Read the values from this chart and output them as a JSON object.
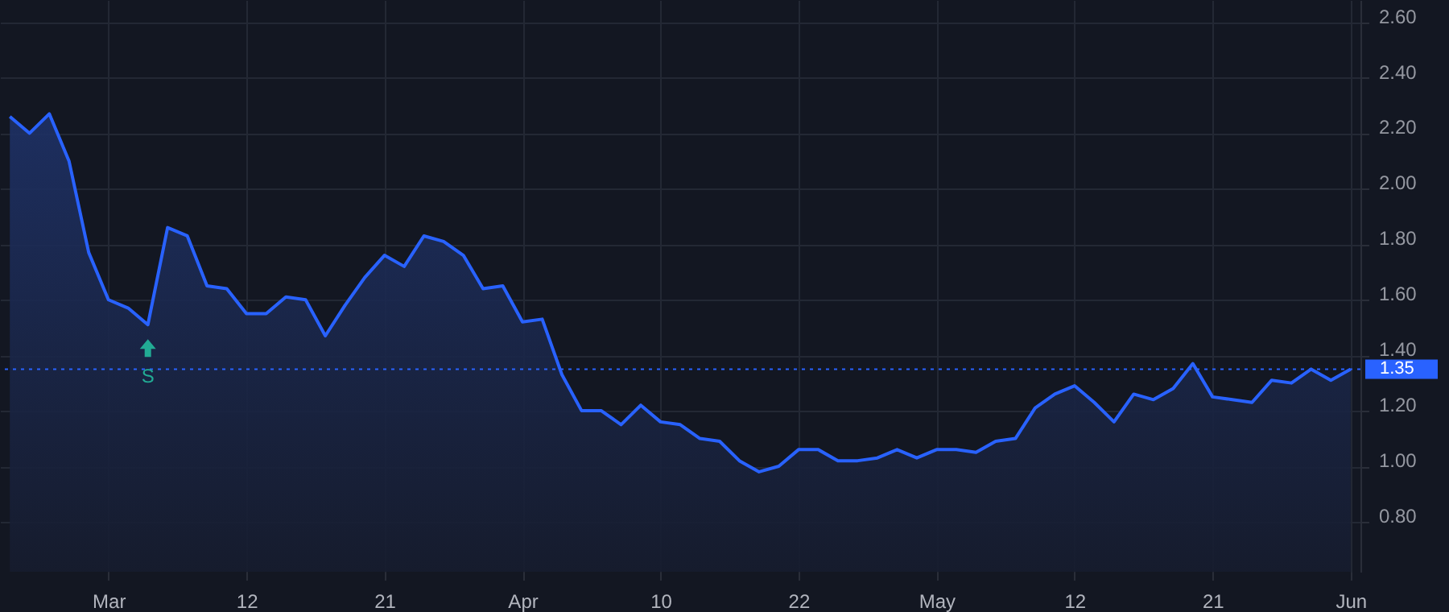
{
  "chart_data": {
    "type": "area",
    "categories": [
      null,
      null,
      null,
      null,
      null,
      "Mar",
      null,
      null,
      null,
      null,
      null,
      null,
      "12",
      null,
      null,
      null,
      null,
      null,
      null,
      "21",
      null,
      null,
      null,
      null,
      null,
      null,
      "Apr",
      null,
      null,
      null,
      null,
      null,
      null,
      "10",
      null,
      null,
      null,
      null,
      null,
      null,
      "22",
      null,
      null,
      null,
      null,
      null,
      null,
      "May",
      null,
      null,
      null,
      null,
      null,
      null,
      "12",
      null,
      null,
      null,
      null,
      null,
      null,
      "21",
      null,
      null,
      null,
      null,
      null,
      null,
      "Jun"
    ],
    "series": [
      {
        "color": "#2962ff",
        "values": [
          2.26,
          2.2,
          2.27,
          2.1,
          1.77,
          1.6,
          1.57,
          1.51,
          1.86,
          1.83,
          1.65,
          1.64,
          1.55,
          1.55,
          1.61,
          1.6,
          1.47,
          1.58,
          1.68,
          1.76,
          1.72,
          1.83,
          1.81,
          1.76,
          1.64,
          1.65,
          1.52,
          1.53,
          1.33,
          1.2,
          1.2,
          1.15,
          1.22,
          1.16,
          1.15,
          1.1,
          1.09,
          1.02,
          0.98,
          1.0,
          1.06,
          1.06,
          1.02,
          1.02,
          1.03,
          1.06,
          1.03,
          1.06,
          1.06,
          1.05,
          1.09,
          1.1,
          1.21,
          1.26,
          1.29,
          1.23,
          1.16,
          1.26,
          1.24,
          1.28,
          1.37,
          1.25,
          1.24,
          1.23,
          1.31,
          1.3,
          1.35,
          1.31,
          1.35
        ]
      }
    ],
    "ylim": [
      0.62,
      2.68
    ],
    "yticks": [
      {
        "value": 0.8,
        "label": "0.80"
      },
      {
        "value": 1.0,
        "label": "1.00"
      },
      {
        "value": 1.2,
        "label": "1.20"
      },
      {
        "value": 1.4,
        "label": "1.40"
      },
      {
        "value": 1.6,
        "label": "1.60"
      },
      {
        "value": 1.8,
        "label": "1.80"
      },
      {
        "value": 2.0,
        "label": "2.00"
      },
      {
        "value": 2.2,
        "label": "2.20"
      },
      {
        "value": 2.4,
        "label": "2.40"
      },
      {
        "value": 2.6,
        "label": "2.60"
      }
    ],
    "ref_lines": [
      {
        "axis": "y",
        "value": 1.35,
        "label": "1.35",
        "color": "#2962ff",
        "line_style": "dotted"
      }
    ],
    "annotations": [
      "S"
    ],
    "grid": true
  }
}
